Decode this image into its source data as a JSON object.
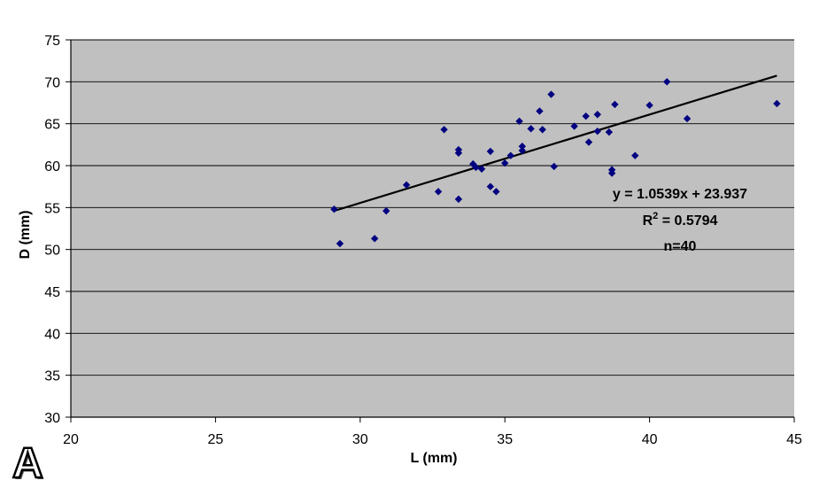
{
  "panel_label": "A",
  "chart_data": {
    "type": "scatter",
    "title": "",
    "xlabel": "L (mm)",
    "ylabel": "D (mm)",
    "xlim": [
      20,
      45
    ],
    "ylim": [
      30,
      75
    ],
    "xticks": [
      20,
      25,
      30,
      35,
      40,
      45
    ],
    "yticks": [
      30,
      35,
      40,
      45,
      50,
      55,
      60,
      65,
      70,
      75
    ],
    "grid": "horizontal",
    "colors": {
      "plot_background": "#c0c0c0",
      "marker": "#000080",
      "trendline": "#000000"
    },
    "points": [
      [
        29.1,
        54.8
      ],
      [
        29.3,
        50.7
      ],
      [
        30.5,
        51.3
      ],
      [
        30.9,
        54.6
      ],
      [
        31.6,
        57.7
      ],
      [
        32.7,
        56.9
      ],
      [
        32.9,
        64.3
      ],
      [
        33.4,
        61.5
      ],
      [
        33.4,
        61.9
      ],
      [
        33.4,
        56.0
      ],
      [
        33.9,
        60.2
      ],
      [
        34.0,
        59.8
      ],
      [
        34.2,
        59.6
      ],
      [
        34.5,
        61.7
      ],
      [
        34.5,
        57.5
      ],
      [
        34.7,
        56.9
      ],
      [
        35.0,
        60.3
      ],
      [
        35.2,
        61.2
      ],
      [
        35.5,
        65.3
      ],
      [
        35.6,
        62.3
      ],
      [
        35.6,
        61.8
      ],
      [
        35.9,
        64.4
      ],
      [
        36.2,
        66.5
      ],
      [
        36.3,
        64.3
      ],
      [
        36.6,
        68.5
      ],
      [
        36.7,
        59.9
      ],
      [
        37.4,
        64.7
      ],
      [
        37.8,
        65.9
      ],
      [
        37.9,
        62.8
      ],
      [
        38.2,
        66.1
      ],
      [
        38.2,
        64.1
      ],
      [
        38.6,
        64.0
      ],
      [
        38.7,
        59.5
      ],
      [
        38.7,
        59.1
      ],
      [
        38.8,
        67.3
      ],
      [
        39.5,
        61.2
      ],
      [
        40.0,
        67.2
      ],
      [
        40.6,
        70.0
      ],
      [
        41.3,
        65.6
      ],
      [
        44.4,
        67.4
      ]
    ],
    "trendline": {
      "slope": 1.0539,
      "intercept": 23.937,
      "x_range": [
        29.1,
        44.4
      ]
    },
    "annotations": {
      "equation": "y = 1.0539x + 23.937",
      "r2_prefix": "R",
      "r2_sup": "2",
      "r2_value": " = 0.5794",
      "n": "n=40"
    }
  }
}
